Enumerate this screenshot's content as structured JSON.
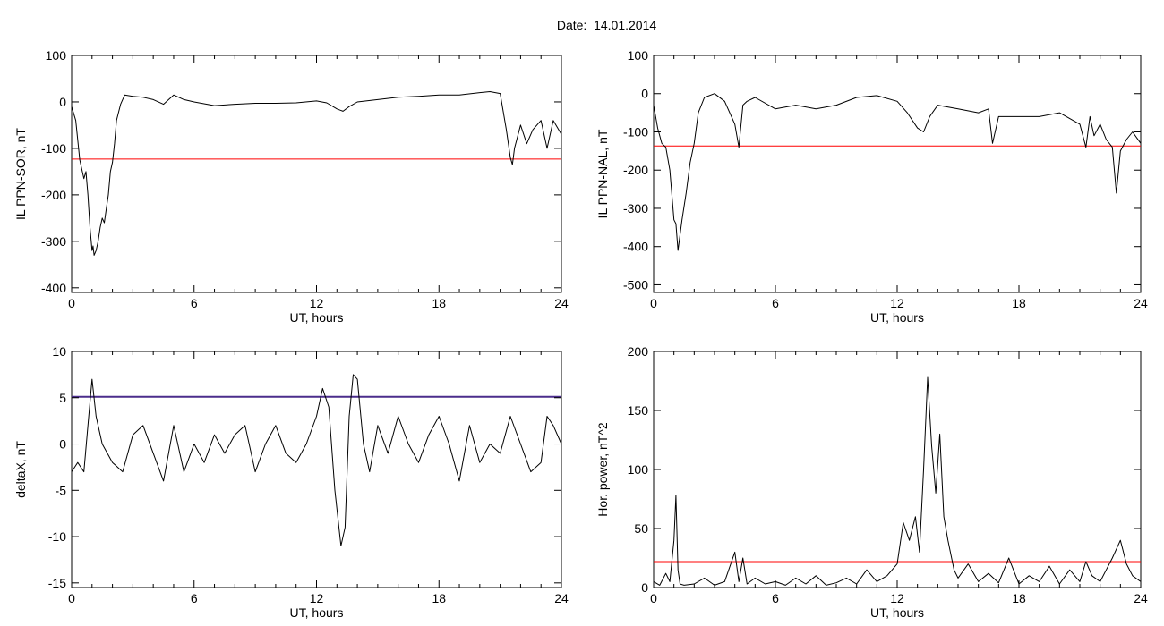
{
  "title": "Date:  14.01.2014",
  "colors": {
    "data": "#000000",
    "threshold": "#ff0000",
    "highlight": "#0055cc",
    "threshold_alt": "#4b2d8c",
    "marker_red": "#cc0000",
    "marker_green": "#22bb22",
    "marker_blue": "#2266dd",
    "marker_purple": "#551a8b"
  },
  "chart_data": [
    {
      "type": "line",
      "xlabel": "UT, hours",
      "ylabel": "IL PPN-SOR, nT",
      "xlim": [
        0,
        24
      ],
      "ylim": [
        -410,
        100
      ],
      "xticks": [
        "0",
        "6",
        "12",
        "18",
        "24"
      ],
      "yticks": [
        "100",
        "0",
        "-100",
        "-200",
        "-300",
        "-400"
      ],
      "threshold": -123,
      "series": [
        {
          "x": [
            0,
            0.2,
            0.4,
            0.5,
            0.6,
            0.7,
            0.8,
            0.9,
            1.0,
            1.05,
            1.1,
            1.2,
            1.3,
            1.4,
            1.5,
            1.6,
            1.7,
            1.8,
            1.9,
            2.0,
            2.1,
            2.2,
            2.4,
            2.6,
            3,
            3.5,
            4,
            4.5,
            5,
            5.5,
            6,
            7,
            8,
            9,
            10,
            11,
            12,
            12.5,
            13,
            13.3,
            13.6,
            14,
            15,
            16,
            17,
            18,
            19,
            20,
            20.5,
            21,
            21.3,
            21.5,
            21.6,
            21.7,
            22,
            22.3,
            22.6,
            23,
            23.3,
            23.6,
            24
          ],
          "y": [
            -10,
            -40,
            -125,
            -145,
            -165,
            -150,
            -200,
            -270,
            -320,
            -310,
            -330,
            -320,
            -300,
            -270,
            -250,
            -260,
            -230,
            -200,
            -150,
            -130,
            -90,
            -40,
            -5,
            15,
            12,
            10,
            5,
            -5,
            15,
            5,
            0,
            -8,
            -5,
            -3,
            -3,
            -2,
            2,
            -2,
            -15,
            -20,
            -10,
            0,
            5,
            10,
            12,
            15,
            15,
            20,
            22,
            18,
            -60,
            -120,
            -135,
            -100,
            -50,
            -90,
            -60,
            -40,
            -100,
            -40,
            -70
          ]
        }
      ]
    },
    {
      "type": "line",
      "xlabel": "UT, hours",
      "ylabel": "IL PPN-NAL, nT",
      "xlim": [
        0,
        24
      ],
      "ylim": [
        -520,
        100
      ],
      "xticks": [
        "0",
        "6",
        "12",
        "18",
        "24"
      ],
      "yticks": [
        "100",
        "0",
        "-100",
        "-200",
        "-300",
        "-400",
        "-500"
      ],
      "threshold": -137,
      "series": [
        {
          "x": [
            0,
            0.2,
            0.4,
            0.6,
            0.8,
            1.0,
            1.1,
            1.2,
            1.4,
            1.6,
            1.8,
            2.0,
            2.2,
            2.5,
            3,
            3.5,
            4,
            4.2,
            4.4,
            4.6,
            5,
            6,
            7,
            8,
            9,
            10,
            11,
            12,
            12.5,
            13,
            13.3,
            13.6,
            14,
            15,
            16,
            16.5,
            16.7,
            17,
            18,
            19,
            20,
            21,
            21.3,
            21.5,
            21.7,
            22,
            22.3,
            22.6,
            22.8,
            23,
            23.3,
            23.6,
            24
          ],
          "y": [
            -30,
            -90,
            -130,
            -140,
            -200,
            -330,
            -340,
            -410,
            -330,
            -260,
            -180,
            -130,
            -50,
            -10,
            0,
            -20,
            -80,
            -140,
            -30,
            -20,
            -10,
            -40,
            -30,
            -40,
            -30,
            -10,
            -5,
            -20,
            -50,
            -90,
            -100,
            -60,
            -30,
            -40,
            -50,
            -40,
            -130,
            -60,
            -60,
            -60,
            -50,
            -80,
            -140,
            -60,
            -110,
            -80,
            -120,
            -140,
            -260,
            -150,
            -120,
            -100,
            -130
          ]
        }
      ]
    },
    {
      "type": "line",
      "xlabel": "UT, hours",
      "ylabel": "deltaX, nT",
      "xlim": [
        0,
        24
      ],
      "ylim": [
        -15.5,
        10
      ],
      "xticks": [
        "0",
        "6",
        "12",
        "18",
        "24"
      ],
      "yticks": [
        "10",
        "5",
        "0",
        "-5",
        "-10",
        "-15"
      ],
      "threshold": 5.1,
      "series": [
        {
          "x": [
            0,
            0.3,
            0.6,
            0.8,
            1.0,
            1.2,
            1.5,
            2,
            2.5,
            3,
            3.5,
            4,
            4.5,
            5,
            5.5,
            6,
            6.5,
            7,
            7.5,
            8,
            8.5,
            9,
            9.5,
            10,
            10.5,
            11,
            11.5,
            12,
            12.3,
            12.6,
            12.9,
            13.2,
            13.4,
            13.6,
            13.8,
            14,
            14.3,
            14.6,
            15,
            15.5,
            16,
            16.5,
            17,
            17.5,
            18,
            18.5,
            19,
            19.5,
            20,
            20.5,
            21,
            21.5,
            22,
            22.5,
            23,
            23.3,
            23.6,
            24
          ],
          "y": [
            -3,
            -2,
            -3,
            2,
            7,
            3,
            0,
            -2,
            -3,
            1,
            2,
            -1,
            -4,
            2,
            -3,
            0,
            -2,
            1,
            -1,
            1,
            2,
            -3,
            0,
            2,
            -1,
            -2,
            0,
            3,
            6,
            4,
            -5,
            -11,
            -9,
            3,
            7.5,
            7,
            0,
            -3,
            2,
            -1,
            3,
            0,
            -2,
            1,
            3,
            0,
            -4,
            2,
            -2,
            0,
            -1,
            3,
            0,
            -3,
            -2,
            3,
            2,
            0
          ]
        }
      ]
    },
    {
      "type": "line",
      "xlabel": "UT, hours",
      "ylabel": "Hor. power, nT^2",
      "xlim": [
        0,
        24
      ],
      "ylim": [
        0,
        200
      ],
      "xticks": [
        "0",
        "6",
        "12",
        "18",
        "24"
      ],
      "yticks": [
        "200",
        "150",
        "100",
        "50",
        "0"
      ],
      "threshold": 22,
      "series": [
        {
          "x": [
            0,
            0.3,
            0.6,
            0.8,
            1.0,
            1.1,
            1.2,
            1.3,
            1.5,
            2,
            2.5,
            3,
            3.5,
            4,
            4.2,
            4.4,
            4.6,
            5,
            5.5,
            6,
            6.5,
            7,
            7.5,
            8,
            8.5,
            9,
            9.5,
            10,
            10.5,
            11,
            11.5,
            12,
            12.3,
            12.6,
            12.9,
            13.1,
            13.3,
            13.5,
            13.7,
            13.9,
            14.1,
            14.3,
            14.5,
            14.8,
            15,
            15.5,
            16,
            16.5,
            17,
            17.5,
            18,
            18.5,
            19,
            19.5,
            20,
            20.5,
            21,
            21.3,
            21.6,
            22,
            22.3,
            22.6,
            23,
            23.3,
            23.6,
            24
          ],
          "y": [
            5,
            2,
            12,
            5,
            40,
            78,
            15,
            3,
            2,
            3,
            8,
            2,
            5,
            30,
            5,
            25,
            3,
            8,
            3,
            5,
            2,
            8,
            3,
            10,
            2,
            4,
            8,
            3,
            15,
            5,
            10,
            20,
            55,
            40,
            60,
            30,
            100,
            178,
            120,
            80,
            130,
            60,
            40,
            15,
            8,
            20,
            5,
            12,
            4,
            25,
            3,
            10,
            5,
            18,
            3,
            15,
            5,
            22,
            10,
            5,
            15,
            25,
            40,
            20,
            10,
            5
          ]
        }
      ]
    }
  ]
}
